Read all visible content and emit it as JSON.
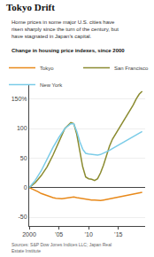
{
  "chart_data": {
    "type": "line",
    "title": "Tokyo Drift",
    "subtitle": "Home prices in some major U.S. cities have\nrisen sharply since the turn of the century, but\nhave stagnated in Japan’s capital.",
    "annotations": [
      "Change in housing price indexes, since 2000",
      "Sources: S&P Dow Jones Indices LLC; Japan Real\nEstate Institute"
    ],
    "series": [
      {
        "name": "Tokyo",
        "color": "#E8891A",
        "x": [
          2000,
          2000.5,
          2001,
          2001.5,
          2002,
          2002.5,
          2003,
          2003.5,
          2004,
          2004.5,
          2005,
          2005.5,
          2006,
          2006.5,
          2007,
          2007.5,
          2008,
          2008.5,
          2009,
          2009.5,
          2010,
          2010.5,
          2011,
          2011.5,
          2012,
          2012.5,
          2013,
          2013.5,
          2014,
          2014.5,
          2015,
          2015.5,
          2016,
          2016.5,
          2017,
          2017.5,
          2018,
          2018.5,
          2019
        ],
        "values": [
          0,
          -2,
          -5,
          -7,
          -10,
          -12,
          -14,
          -16,
          -17,
          -18,
          -19,
          -19,
          -18,
          -17,
          -16,
          -16,
          -17,
          -18,
          -19,
          -20,
          -20,
          -21,
          -21,
          -22,
          -22,
          -21,
          -20,
          -20,
          -19,
          -18,
          -17,
          -16,
          -15,
          -14,
          -13,
          -12,
          -11,
          -10,
          -8
        ]
      },
      {
        "name": "San Francisco",
        "color": "#8B8B30",
        "x": [
          2000,
          2001,
          2002,
          2003,
          2004,
          2005,
          2006,
          2007,
          2007.5,
          2008,
          2008.5,
          2009,
          2009.5,
          2010,
          2010.5,
          2011,
          2011.5,
          2012,
          2012.5,
          2013,
          2013.5,
          2014,
          2014.5,
          2015,
          2015.5,
          2016,
          2016.5,
          2017,
          2017.5,
          2018,
          2018.5,
          2019
        ],
        "values": [
          0,
          8,
          20,
          35,
          55,
          78,
          100,
          110,
          108,
          90,
          60,
          35,
          18,
          15,
          14,
          12,
          15,
          25,
          38,
          55,
          70,
          82,
          90,
          98,
          106,
          114,
          122,
          132,
          140,
          150,
          158,
          163
        ]
      },
      {
        "name": "New York",
        "color": "#7BCCE8",
        "x": [
          2000,
          2001,
          2002,
          2003,
          2004,
          2005,
          2006,
          2007,
          2007.5,
          2008,
          2008.5,
          2009,
          2009.5,
          2010,
          2010.5,
          2011,
          2011.5,
          2012,
          2012.5,
          2013,
          2013.5,
          2014,
          2014.5,
          2015,
          2015.5,
          2016,
          2016.5,
          2017,
          2017.5,
          2018,
          2018.5,
          2019
        ],
        "values": [
          0,
          12,
          28,
          48,
          68,
          85,
          100,
          108,
          108,
          95,
          78,
          65,
          58,
          57,
          56,
          55,
          55,
          56,
          58,
          60,
          63,
          66,
          69,
          72,
          75,
          78,
          81,
          84,
          87,
          90,
          93,
          95
        ]
      }
    ],
    "xlim": [
      2000,
      2019.5
    ],
    "xticks": [
      2000,
      {
        "value": 2005,
        "label": "’05"
      },
      {
        "value": 2010,
        "label": "’10"
      },
      {
        "value": 2015,
        "label": "’15"
      }
    ],
    "ylim": [
      -65,
      175
    ],
    "yticks": [
      -50,
      0,
      50,
      100,
      {
        "value": 150,
        "label": "150%"
      }
    ],
    "grid": true,
    "legend": "top"
  }
}
